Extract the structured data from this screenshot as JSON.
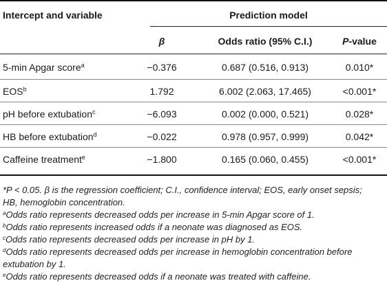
{
  "header": {
    "col_variable": "Intercept and variable",
    "group": "Prediction model",
    "col_beta": "β",
    "col_or": "Odds ratio (95% C.I.)",
    "col_p_ital": "P",
    "col_p_rest": "-value"
  },
  "rows": [
    {
      "variable": "5-min Apgar score",
      "sup": "a",
      "beta": "−0.376",
      "or": "0.687 (0.516, 0.913)",
      "p": "0.010*"
    },
    {
      "variable": "EOS",
      "sup": "b",
      "beta": "1.792",
      "or": "6.002 (2.063, 17.465)",
      "p": "<0.001*"
    },
    {
      "variable": "pH before extubation",
      "sup": "c",
      "beta": "−6.093",
      "or": "0.002 (0.000, 0.521)",
      "p": "0.028*"
    },
    {
      "variable": "HB before extubation",
      "sup": "d",
      "beta": "−0.022",
      "or": "0.978 (0.957, 0.999)",
      "p": "0.042*"
    },
    {
      "variable": "Caffeine treatment",
      "sup": "e",
      "beta": "−1.800",
      "or": "0.165 (0.060, 0.455)",
      "p": "<0.001*"
    }
  ],
  "footnotes": {
    "main_line1": "*P < 0.05. β is the regression coefficient; C.I., confidence interval; EOS, early onset sepsis;",
    "main_line2": "HB, hemoglobin concentration.",
    "a_mark": "a",
    "a_text": "Odds ratio represents decreased odds per increase in 5-min Apgar score of 1.",
    "b_mark": "b",
    "b_text": "Odds ratio represents increased odds if a neonate was diagnosed as EOS.",
    "c_mark": "c",
    "c_text": "Odds ratio represents decreased odds per increase in pH by 1.",
    "d_mark": "d",
    "d_text_line1": "Odds ratio represents decreased odds per increase in hemoglobin concentration before",
    "d_text_line2": "extubation by 1.",
    "e_mark": "e",
    "e_text": "Odds ratio represents decreased odds if a neonate was treated with caffeine."
  }
}
